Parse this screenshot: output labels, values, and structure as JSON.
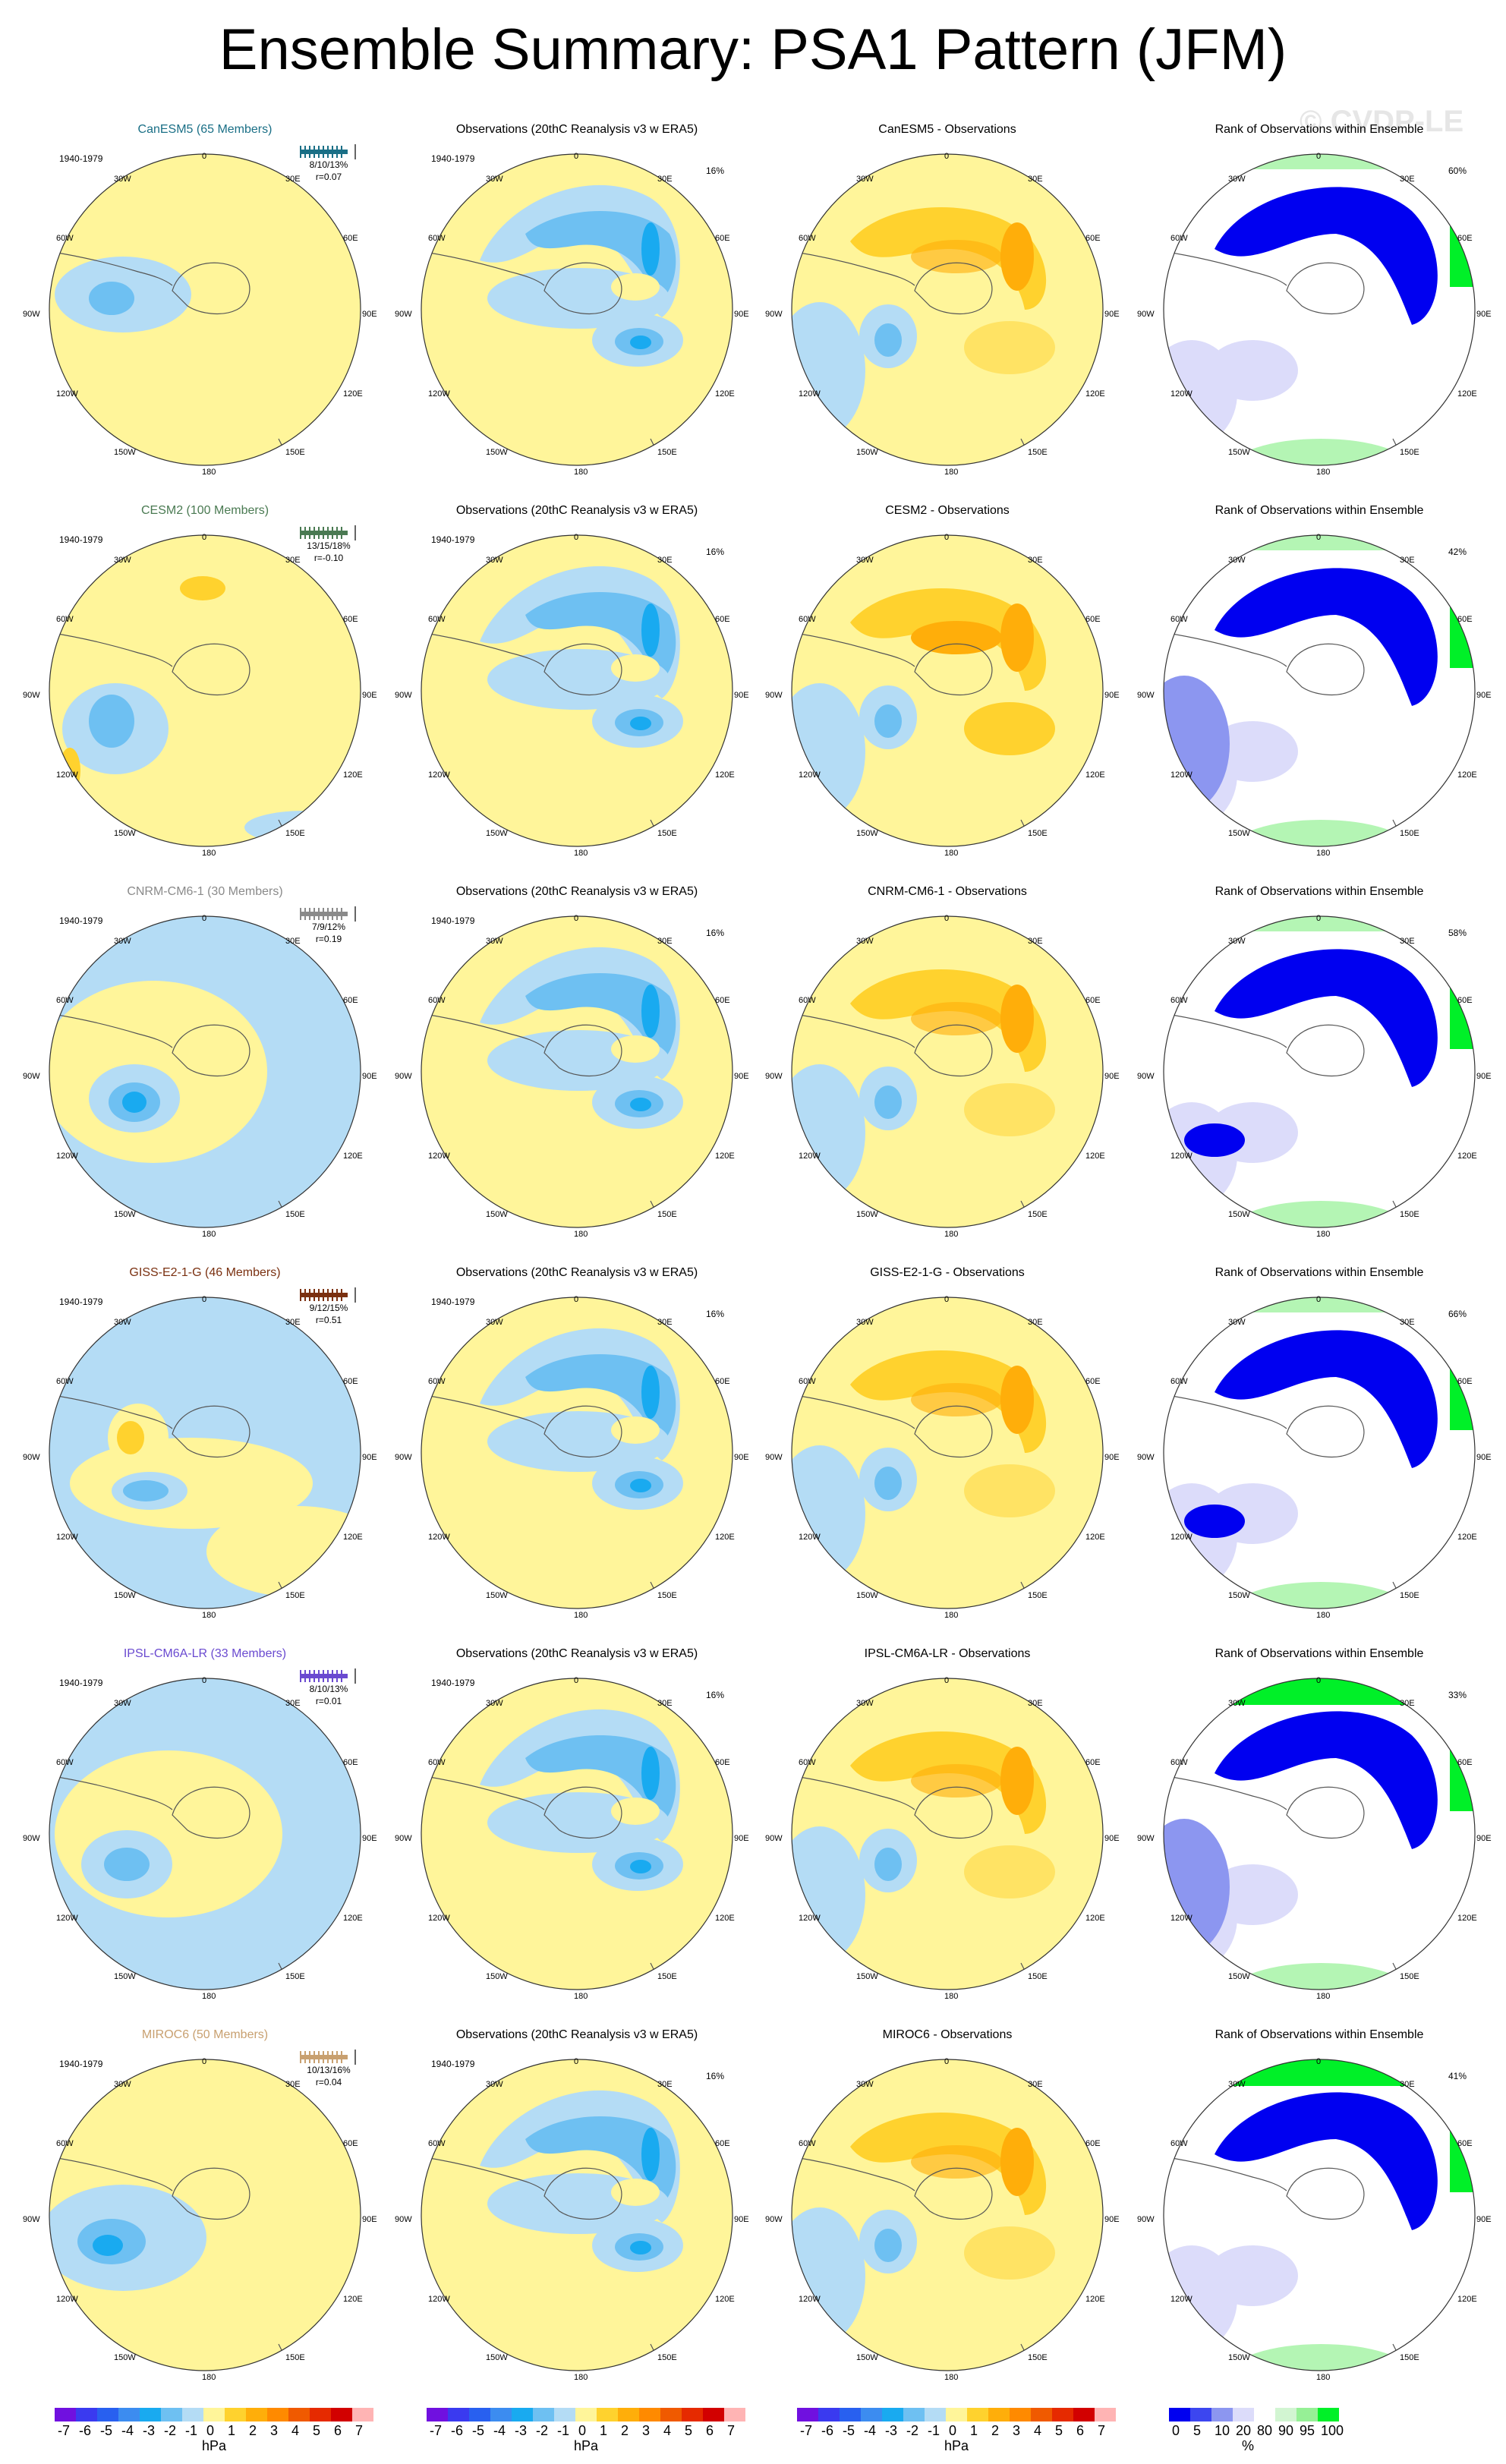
{
  "title": "Ensemble Summary: PSA1 Pattern (JFM)",
  "watermark": "© CVDP-LE",
  "period": "1940-1979",
  "colors": {
    "pos1": "#fff59a",
    "pos2": "#ffd22e",
    "pos3": "#ffae0a",
    "neg1": "#b4dcf5",
    "neg2": "#6ec0f2",
    "neg3": "#19aaf0",
    "rank_dark": "#0000f0",
    "rank_blue": "#8c96f0",
    "rank_light": "#dcdcfa",
    "rank_green": "#00f028",
    "rank_lgreen": "#b4f5b4",
    "land": "#555555"
  },
  "geo_labels": {
    "lon": [
      "0",
      "30E",
      "60E",
      "90E",
      "120E",
      "150E",
      "180",
      "150W",
      "120W",
      "90W",
      "60W",
      "30W"
    ]
  },
  "column_titles": {
    "obs": "Observations (20thC Reanalysis v3 w ERA5)",
    "obs_pct": "16%",
    "rank": "Rank of Observations within Ensemble"
  },
  "models": [
    {
      "name": "CanESM5",
      "members": "CanESM5 (65 Members)",
      "color": "#1a6f86",
      "spread": "8/10/13%",
      "r": "r=0.07",
      "diff_title": "CanESM5 - Observations",
      "rank_pct": "60%"
    },
    {
      "name": "CESM2",
      "members": "CESM2 (100 Members)",
      "color": "#4a7a52",
      "spread": "13/15/18%",
      "r": "r=-0.10",
      "diff_title": "CESM2 - Observations",
      "rank_pct": "42%"
    },
    {
      "name": "CNRM-CM6-1",
      "members": "CNRM-CM6-1 (30 Members)",
      "color": "#8a8a8a",
      "spread": "7/9/12%",
      "r": "r=0.19",
      "diff_title": "CNRM-CM6-1 - Observations",
      "rank_pct": "58%"
    },
    {
      "name": "GISS-E2-1-G",
      "members": "GISS-E2-1-G (46 Members)",
      "color": "#7a3010",
      "spread": "9/12/15%",
      "r": "r=0.51",
      "diff_title": "GISS-E2-1-G - Observations",
      "rank_pct": "66%"
    },
    {
      "name": "IPSL-CM6A-LR",
      "members": "IPSL-CM6A-LR (33 Members)",
      "color": "#6a4ad0",
      "spread": "8/10/13%",
      "r": "r=0.01",
      "diff_title": "IPSL-CM6A-LR - Observations",
      "rank_pct": "33%"
    },
    {
      "name": "MIROC6",
      "members": "MIROC6 (50 Members)",
      "color": "#c8a070",
      "spread": "10/13/16%",
      "r": "r=0.04",
      "diff_title": "MIROC6 - Observations",
      "rank_pct": "41%"
    }
  ],
  "colorbars": {
    "hpa_ticks": [
      "-7",
      "-6",
      "-5",
      "-4",
      "-3",
      "-2",
      "-1",
      "0",
      "1",
      "2",
      "3",
      "4",
      "5",
      "6",
      "7"
    ],
    "hpa_colors": [
      "#7010e0",
      "#3a3af0",
      "#2860f0",
      "#3c8cf0",
      "#19aaf0",
      "#6ec0f2",
      "#b4dcf5",
      "#fff59a",
      "#ffd22e",
      "#ffae0a",
      "#ff8a00",
      "#f05a00",
      "#e62a00",
      "#d20000",
      "#ffb4b4"
    ],
    "hpa_unit": "hPa",
    "rank_ticks": [
      "0",
      "5",
      "10",
      "20",
      "80",
      "90",
      "95",
      "100"
    ],
    "rank_colors": [
      "#0000f0",
      "#3c46f0",
      "#8c96f0",
      "#dcdcfa",
      "#ffffff",
      "#d2f5d2",
      "#96f096",
      "#00f028"
    ],
    "rank_unit": "%"
  },
  "chart_data": {
    "type": "heatmap",
    "title": "Ensemble Summary: PSA1 Pattern (JFM)",
    "period": "1940-1979",
    "units": "hPa",
    "colorbar_range": [
      -7,
      7
    ],
    "rank_levels": [
      0,
      5,
      10,
      20,
      80,
      90,
      95,
      100
    ],
    "panels_per_row": [
      "model ensemble pattern",
      "Observations (20thC Reanalysis v3 w ERA5)",
      "model - Observations",
      "Rank of Observations within Ensemble"
    ],
    "rows": [
      {
        "model": "CanESM5",
        "members": 65,
        "pct_explained": [
          8,
          10,
          13
        ],
        "r": 0.07,
        "obs_pct": 16,
        "rank_pct": 60
      },
      {
        "model": "CESM2",
        "members": 100,
        "pct_explained": [
          13,
          15,
          18
        ],
        "r": -0.1,
        "obs_pct": 16,
        "rank_pct": 42
      },
      {
        "model": "CNRM-CM6-1",
        "members": 30,
        "pct_explained": [
          7,
          9,
          12
        ],
        "r": 0.19,
        "obs_pct": 16,
        "rank_pct": 58
      },
      {
        "model": "GISS-E2-1-G",
        "members": 46,
        "pct_explained": [
          9,
          12,
          15
        ],
        "r": 0.51,
        "obs_pct": 16,
        "rank_pct": 66
      },
      {
        "model": "IPSL-CM6A-LR",
        "members": 33,
        "pct_explained": [
          8,
          10,
          13
        ],
        "r": 0.01,
        "obs_pct": 16,
        "rank_pct": 33
      },
      {
        "model": "MIROC6",
        "members": 50,
        "pct_explained": [
          10,
          13,
          16
        ],
        "r": 0.04,
        "obs_pct": 16,
        "rank_pct": 41
      }
    ]
  }
}
